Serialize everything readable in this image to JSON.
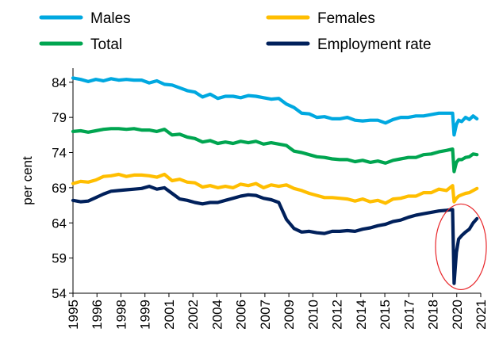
{
  "chart_data": {
    "type": "line",
    "title": "",
    "xlabel": "",
    "ylabel": "per cent",
    "ylim": [
      54,
      86
    ],
    "xlim": [
      1995.0,
      2021.75
    ],
    "grid": false,
    "legend_position": "top",
    "yticks": [
      54,
      59,
      64,
      69,
      74,
      79,
      84
    ],
    "xticks": [
      "1995",
      "1996",
      "1998",
      "1999",
      "2001",
      "2002",
      "2004",
      "2006",
      "2007",
      "2009",
      "2010",
      "2012",
      "2014",
      "2015",
      "2017",
      "2018",
      "2020",
      "2021"
    ],
    "series": [
      {
        "name": "Males",
        "color": "#00a8e0",
        "x": [
          1995.0,
          1995.5,
          1996.0,
          1996.5,
          1997.0,
          1997.5,
          1998.0,
          1998.5,
          1999.0,
          1999.5,
          2000.0,
          2000.5,
          2001.0,
          2001.5,
          2002.0,
          2002.5,
          2003.0,
          2003.5,
          2004.0,
          2004.5,
          2005.0,
          2005.5,
          2006.0,
          2006.5,
          2007.0,
          2007.5,
          2008.0,
          2008.5,
          2009.0,
          2009.5,
          2010.0,
          2010.5,
          2011.0,
          2011.5,
          2012.0,
          2012.5,
          2013.0,
          2013.5,
          2014.0,
          2014.5,
          2015.0,
          2015.5,
          2016.0,
          2016.5,
          2017.0,
          2017.5,
          2018.0,
          2018.5,
          2019.0,
          2019.5,
          2019.9,
          2020.0,
          2020.15,
          2020.3,
          2020.5,
          2020.75,
          2021.0,
          2021.25,
          2021.5
        ],
        "values": [
          84.6,
          84.4,
          84.1,
          84.4,
          84.2,
          84.5,
          84.3,
          84.4,
          84.3,
          84.3,
          83.9,
          84.2,
          83.7,
          83.6,
          83.2,
          82.8,
          82.6,
          81.9,
          82.3,
          81.7,
          82.0,
          82.0,
          81.8,
          82.1,
          82.0,
          81.8,
          81.6,
          81.7,
          80.9,
          80.4,
          79.6,
          79.5,
          79.0,
          79.1,
          78.8,
          78.8,
          79.0,
          78.6,
          78.5,
          78.6,
          78.6,
          78.2,
          78.7,
          79.0,
          79.0,
          79.2,
          79.2,
          79.4,
          79.6,
          79.6,
          79.6,
          76.5,
          78.0,
          78.6,
          78.4,
          79.0,
          78.7,
          79.2,
          78.8
        ]
      },
      {
        "name": "Females",
        "color": "#ffbe00",
        "x": [
          1995.0,
          1995.5,
          1996.0,
          1996.5,
          1997.0,
          1997.5,
          1998.0,
          1998.5,
          1999.0,
          1999.5,
          2000.0,
          2000.5,
          2001.0,
          2001.5,
          2002.0,
          2002.5,
          2003.0,
          2003.5,
          2004.0,
          2004.5,
          2005.0,
          2005.5,
          2006.0,
          2006.5,
          2007.0,
          2007.5,
          2008.0,
          2008.5,
          2009.0,
          2009.5,
          2010.0,
          2010.5,
          2011.0,
          2011.5,
          2012.0,
          2012.5,
          2013.0,
          2013.5,
          2014.0,
          2014.5,
          2015.0,
          2015.5,
          2016.0,
          2016.5,
          2017.0,
          2017.5,
          2018.0,
          2018.5,
          2019.0,
          2019.5,
          2019.9,
          2020.0,
          2020.15,
          2020.3,
          2020.5,
          2020.75,
          2021.0,
          2021.25,
          2021.5
        ],
        "values": [
          69.6,
          69.9,
          69.8,
          70.1,
          70.6,
          70.7,
          70.9,
          70.6,
          70.8,
          70.8,
          70.7,
          70.5,
          70.9,
          70.0,
          70.2,
          69.8,
          69.7,
          69.1,
          69.3,
          69.0,
          69.2,
          69.0,
          69.5,
          69.3,
          69.6,
          69.0,
          69.4,
          69.2,
          69.4,
          68.9,
          68.6,
          68.2,
          67.9,
          67.6,
          67.6,
          67.5,
          67.4,
          67.1,
          67.4,
          67.0,
          67.2,
          66.8,
          67.4,
          67.5,
          67.8,
          67.8,
          68.3,
          68.3,
          68.8,
          68.6,
          69.3,
          67.0,
          67.5,
          67.8,
          68.0,
          68.2,
          68.3,
          68.6,
          68.9
        ]
      },
      {
        "name": "Total",
        "color": "#00a550",
        "x": [
          1995.0,
          1995.5,
          1996.0,
          1996.5,
          1997.0,
          1997.5,
          1998.0,
          1998.5,
          1999.0,
          1999.5,
          2000.0,
          2000.5,
          2001.0,
          2001.5,
          2002.0,
          2002.5,
          2003.0,
          2003.5,
          2004.0,
          2004.5,
          2005.0,
          2005.5,
          2006.0,
          2006.5,
          2007.0,
          2007.5,
          2008.0,
          2008.5,
          2009.0,
          2009.5,
          2010.0,
          2010.5,
          2011.0,
          2011.5,
          2012.0,
          2012.5,
          2013.0,
          2013.5,
          2014.0,
          2014.5,
          2015.0,
          2015.5,
          2016.0,
          2016.5,
          2017.0,
          2017.5,
          2018.0,
          2018.5,
          2019.0,
          2019.5,
          2019.9,
          2020.0,
          2020.15,
          2020.3,
          2020.5,
          2020.75,
          2021.0,
          2021.25,
          2021.5
        ],
        "values": [
          77.0,
          77.1,
          76.9,
          77.1,
          77.3,
          77.4,
          77.4,
          77.3,
          77.4,
          77.2,
          77.2,
          77.0,
          77.3,
          76.5,
          76.6,
          76.2,
          76.0,
          75.5,
          75.7,
          75.3,
          75.5,
          75.3,
          75.6,
          75.4,
          75.6,
          75.2,
          75.4,
          75.2,
          75.0,
          74.2,
          74.0,
          73.7,
          73.4,
          73.3,
          73.1,
          73.0,
          73.0,
          72.7,
          72.9,
          72.6,
          72.8,
          72.5,
          72.9,
          73.1,
          73.3,
          73.3,
          73.7,
          73.8,
          74.1,
          74.3,
          74.5,
          71.3,
          72.6,
          73.0,
          73.0,
          73.3,
          73.4,
          73.8,
          73.7
        ]
      },
      {
        "name": "Employment rate",
        "color": "#00205b",
        "x": [
          1995.0,
          1995.5,
          1996.0,
          1996.5,
          1997.0,
          1997.5,
          1998.0,
          1998.5,
          1999.0,
          1999.5,
          2000.0,
          2000.5,
          2001.0,
          2001.5,
          2002.0,
          2002.5,
          2003.0,
          2003.5,
          2004.0,
          2004.5,
          2005.0,
          2005.5,
          2006.0,
          2006.5,
          2007.0,
          2007.5,
          2008.0,
          2008.5,
          2009.0,
          2009.5,
          2010.0,
          2010.5,
          2011.0,
          2011.5,
          2012.0,
          2012.5,
          2013.0,
          2013.5,
          2014.0,
          2014.5,
          2015.0,
          2015.5,
          2016.0,
          2016.5,
          2017.0,
          2017.5,
          2018.0,
          2018.5,
          2019.0,
          2019.5,
          2019.9,
          2020.0,
          2020.15,
          2020.3,
          2020.5,
          2020.75,
          2021.0,
          2021.25,
          2021.5
        ],
        "values": [
          67.2,
          67.0,
          67.1,
          67.6,
          68.1,
          68.5,
          68.6,
          68.7,
          68.8,
          68.9,
          69.2,
          68.8,
          69.0,
          68.2,
          67.4,
          67.2,
          66.9,
          66.7,
          66.9,
          66.9,
          67.2,
          67.5,
          67.8,
          68.0,
          67.9,
          67.5,
          67.3,
          66.9,
          64.5,
          63.2,
          62.7,
          62.8,
          62.6,
          62.5,
          62.8,
          62.8,
          62.9,
          62.8,
          63.1,
          63.3,
          63.6,
          63.8,
          64.2,
          64.4,
          64.8,
          65.1,
          65.3,
          65.5,
          65.7,
          65.8,
          65.9,
          55.4,
          59.8,
          61.7,
          62.2,
          62.7,
          63.1,
          64.0,
          64.6
        ]
      }
    ],
    "annotations": [
      {
        "type": "ellipse",
        "color": "#e8262a",
        "around_x": 2020.45,
        "around_y": 60.6
      }
    ]
  }
}
